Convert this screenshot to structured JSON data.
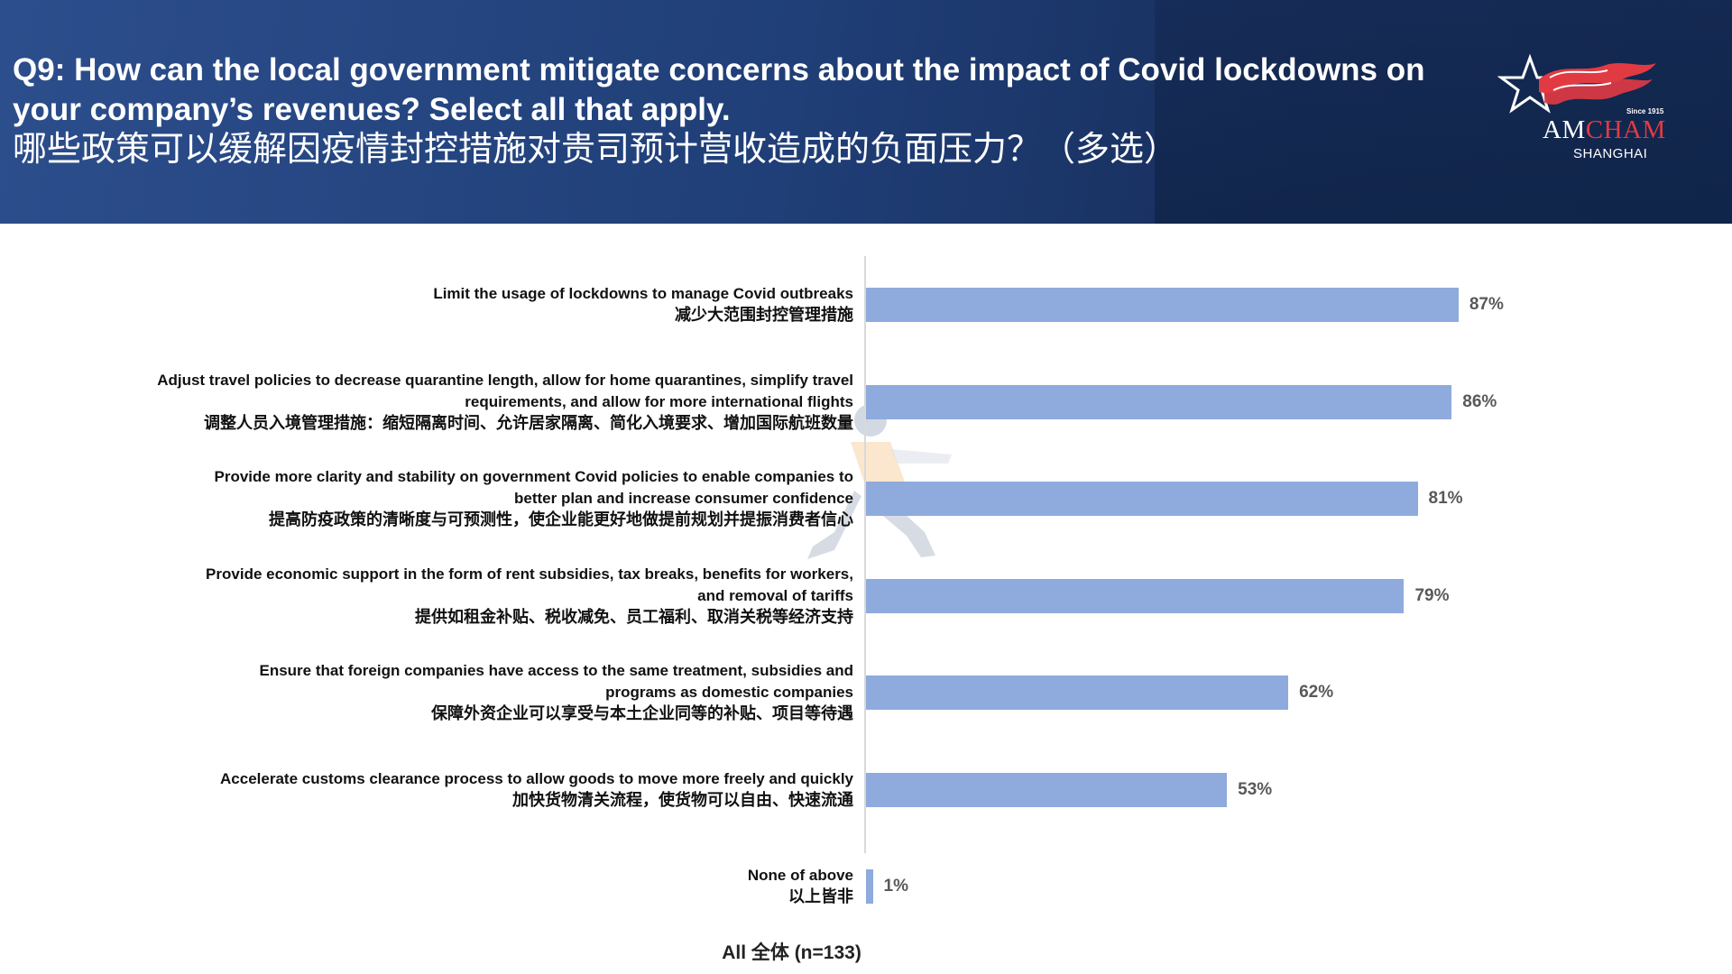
{
  "header": {
    "title_en": "Q9: How can the local government mitigate concerns about the impact of Covid lockdowns on your company’s revenues? Select all that apply.",
    "title_cn": "哪些政策可以缓解因疫情封控措施对贵司预计营收造成的负面压力？（多选）"
  },
  "logo": {
    "since": "Since 1915",
    "am": "AM",
    "cham": "CHAM",
    "city": "SHANGHAI"
  },
  "colors": {
    "bar": "#8faadc",
    "header": "#203f78",
    "logo_red": "#e23a43"
  },
  "chart_data": {
    "type": "bar",
    "orientation": "horizontal",
    "categories": [
      {
        "en": [
          "Limit the usage of lockdowns to manage Covid outbreaks"
        ],
        "cn": "减少大范围封控管理措施"
      },
      {
        "en": [
          "Adjust travel policies to decrease quarantine length, allow for home quarantines, simplify travel",
          "requirements, and allow for more international flights"
        ],
        "cn": "调整人员入境管理措施：缩短隔离时间、允许居家隔离、简化入境要求、增加国际航班数量"
      },
      {
        "en": [
          "Provide more clarity and stability on government Covid policies to enable companies to",
          "better plan and increase consumer confidence"
        ],
        "cn": "提高防疫政策的清晰度与可预测性，使企业能更好地做提前规划并提振消费者信心"
      },
      {
        "en": [
          "Provide economic support in the form of rent subsidies, tax breaks, benefits for workers,",
          "and removal of tariffs"
        ],
        "cn": "提供如租金补贴、税收减免、员工福利、取消关税等经济支持"
      },
      {
        "en": [
          "Ensure that foreign companies have access to the same treatment, subsidies and",
          "programs as domestic companies"
        ],
        "cn": "保障外资企业可以享受与本土企业同等的补贴、项目等待遇"
      },
      {
        "en": [
          "Accelerate customs clearance process to allow goods to move more freely and quickly"
        ],
        "cn": "加快货物清关流程，使货物可以自由、快速流通"
      },
      {
        "en": [
          "None of above"
        ],
        "cn": "以上皆非"
      }
    ],
    "values": [
      87,
      86,
      81,
      79,
      62,
      53,
      1
    ],
    "value_labels": [
      "87%",
      "86%",
      "81%",
      "79%",
      "62%",
      "53%",
      "1%"
    ],
    "xlim": [
      0,
      100
    ],
    "unit": "%",
    "xlabel": "All 全体 (n=133)",
    "grid": false,
    "legend": "none"
  }
}
